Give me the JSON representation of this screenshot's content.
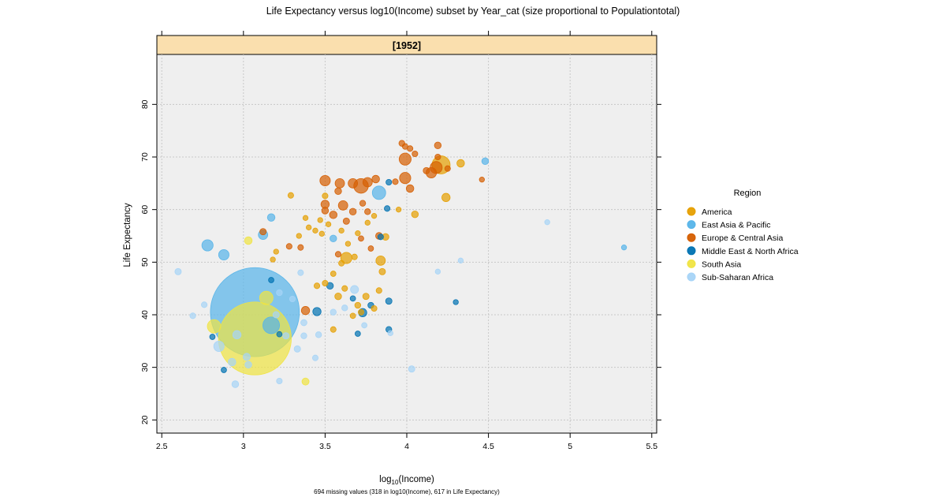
{
  "chart_data": {
    "type": "scatter",
    "title": "Life Expectancy versus log10(Income) subset by Year_cat (size proportional to Populationtotal)",
    "strip_label": "[1952]",
    "xlabel": {
      "main": "log",
      "sub": "10",
      "rest": "(Income)"
    },
    "ylabel": "Life Expectancy",
    "footnote": "694 missing values (318 in log10(Income), 617 in Life Expectancy)",
    "xlim": [
      2.47,
      5.53
    ],
    "ylim": [
      17.5,
      89.5
    ],
    "x_ticks": [
      2.5,
      3,
      3.5,
      4,
      4.5,
      5,
      5.5
    ],
    "x_tick_labels": [
      "2.5",
      "3",
      "3.5",
      "4",
      "4.5",
      "5",
      "5.5"
    ],
    "y_ticks": [
      20,
      30,
      40,
      50,
      60,
      70,
      80
    ],
    "y_tick_labels": [
      "20",
      "30",
      "40",
      "50",
      "60",
      "70",
      "80"
    ],
    "grid": true,
    "legend": {
      "title": "Region",
      "placement": "right",
      "entries": [
        {
          "key": "america",
          "label": "America",
          "color": "#E69F00"
        },
        {
          "key": "eap",
          "label": "East Asia & Pacific",
          "color": "#56B4E9"
        },
        {
          "key": "eca",
          "label": "Europe & Central Asia",
          "color": "#D55E00"
        },
        {
          "key": "mena",
          "label": "Middle East & North Africa",
          "color": "#0072B2"
        },
        {
          "key": "sa",
          "label": "South Asia",
          "color": "#F0E442"
        },
        {
          "key": "ssa",
          "label": "Sub-Saharan Africa",
          "color": "#A6D4F7"
        }
      ]
    },
    "size_variable": "Populationtotal",
    "size_scale_note": "bubble radius proportional to sqrt(population); values are relative population",
    "points": [
      {
        "x": 3.07,
        "y": 40.5,
        "pop": 560,
        "region": "eap"
      },
      {
        "x": 3.07,
        "y": 35.5,
        "pop": 370,
        "region": "sa"
      },
      {
        "x": 3.14,
        "y": 43.2,
        "pop": 8,
        "region": "sa"
      },
      {
        "x": 3.17,
        "y": 38.0,
        "pop": 14,
        "region": "eap"
      },
      {
        "x": 2.82,
        "y": 37.8,
        "pop": 8,
        "region": "sa"
      },
      {
        "x": 2.78,
        "y": 53.2,
        "pop": 5,
        "region": "eap"
      },
      {
        "x": 2.88,
        "y": 51.4,
        "pop": 4,
        "region": "eap"
      },
      {
        "x": 3.12,
        "y": 55.2,
        "pop": 3,
        "region": "eap"
      },
      {
        "x": 3.17,
        "y": 58.5,
        "pop": 1.5,
        "region": "eap"
      },
      {
        "x": 3.03,
        "y": 54.1,
        "pop": 1.5,
        "region": "sa"
      },
      {
        "x": 2.85,
        "y": 34.0,
        "pop": 4,
        "region": "ssa"
      },
      {
        "x": 2.96,
        "y": 36.2,
        "pop": 2,
        "region": "ssa"
      },
      {
        "x": 2.93,
        "y": 31.0,
        "pop": 1.5,
        "region": "ssa"
      },
      {
        "x": 2.95,
        "y": 26.8,
        "pop": 1,
        "region": "ssa"
      },
      {
        "x": 3.03,
        "y": 30.5,
        "pop": 1,
        "region": "ssa"
      },
      {
        "x": 2.6,
        "y": 48.2,
        "pop": 0.8,
        "region": "ssa"
      },
      {
        "x": 2.69,
        "y": 39.8,
        "pop": 0.5,
        "region": "ssa"
      },
      {
        "x": 2.88,
        "y": 29.5,
        "pop": 0.4,
        "region": "mena"
      },
      {
        "x": 2.81,
        "y": 35.8,
        "pop": 0.4,
        "region": "mena"
      },
      {
        "x": 3.2,
        "y": 40.0,
        "pop": 0.8,
        "region": "ssa"
      },
      {
        "x": 3.22,
        "y": 44.2,
        "pop": 0.6,
        "region": "ssa"
      },
      {
        "x": 3.26,
        "y": 36.0,
        "pop": 0.8,
        "region": "ssa"
      },
      {
        "x": 3.33,
        "y": 33.5,
        "pop": 0.8,
        "region": "ssa"
      },
      {
        "x": 3.37,
        "y": 38.5,
        "pop": 0.7,
        "region": "ssa"
      },
      {
        "x": 3.37,
        "y": 36.0,
        "pop": 0.6,
        "region": "ssa"
      },
      {
        "x": 3.44,
        "y": 31.8,
        "pop": 0.5,
        "region": "ssa"
      },
      {
        "x": 3.46,
        "y": 36.2,
        "pop": 0.6,
        "region": "ssa"
      },
      {
        "x": 3.3,
        "y": 43.0,
        "pop": 0.5,
        "region": "ssa"
      },
      {
        "x": 3.35,
        "y": 48.0,
        "pop": 0.5,
        "region": "ssa"
      },
      {
        "x": 3.22,
        "y": 27.4,
        "pop": 0.5,
        "region": "ssa"
      },
      {
        "x": 3.38,
        "y": 27.3,
        "pop": 1.2,
        "region": "sa"
      },
      {
        "x": 3.55,
        "y": 40.5,
        "pop": 0.6,
        "region": "ssa"
      },
      {
        "x": 3.62,
        "y": 41.3,
        "pop": 0.6,
        "region": "ssa"
      },
      {
        "x": 3.68,
        "y": 44.8,
        "pop": 1.8,
        "region": "ssa"
      },
      {
        "x": 3.74,
        "y": 38.0,
        "pop": 0.4,
        "region": "ssa"
      },
      {
        "x": 3.9,
        "y": 36.5,
        "pop": 0.3,
        "region": "ssa"
      },
      {
        "x": 4.03,
        "y": 29.7,
        "pop": 0.8,
        "region": "ssa"
      },
      {
        "x": 4.19,
        "y": 48.2,
        "pop": 0.3,
        "region": "ssa"
      },
      {
        "x": 4.33,
        "y": 50.3,
        "pop": 0.3,
        "region": "ssa"
      },
      {
        "x": 4.86,
        "y": 57.6,
        "pop": 0.3,
        "region": "ssa"
      },
      {
        "x": 5.33,
        "y": 52.8,
        "pop": 0.3,
        "region": "eap"
      },
      {
        "x": 4.3,
        "y": 42.4,
        "pop": 0.3,
        "region": "mena"
      },
      {
        "x": 3.5,
        "y": 65.5,
        "pop": 4,
        "region": "eca"
      },
      {
        "x": 3.59,
        "y": 65.0,
        "pop": 3,
        "region": "eca"
      },
      {
        "x": 3.67,
        "y": 65.0,
        "pop": 3,
        "region": "eca"
      },
      {
        "x": 3.72,
        "y": 64.5,
        "pop": 10,
        "region": "eca"
      },
      {
        "x": 3.76,
        "y": 65.2,
        "pop": 3,
        "region": "eca"
      },
      {
        "x": 3.81,
        "y": 65.8,
        "pop": 1.5,
        "region": "eca"
      },
      {
        "x": 3.99,
        "y": 69.6,
        "pop": 6,
        "region": "eca"
      },
      {
        "x": 3.99,
        "y": 66.0,
        "pop": 5,
        "region": "eca"
      },
      {
        "x": 4.02,
        "y": 64.0,
        "pop": 1.5,
        "region": "eca"
      },
      {
        "x": 4.18,
        "y": 68.0,
        "pop": 6,
        "region": "eca"
      },
      {
        "x": 4.15,
        "y": 67.0,
        "pop": 4,
        "region": "eca"
      },
      {
        "x": 4.21,
        "y": 68.5,
        "pop": 17,
        "region": "america"
      },
      {
        "x": 4.33,
        "y": 68.8,
        "pop": 1.5,
        "region": "america"
      },
      {
        "x": 4.48,
        "y": 69.2,
        "pop": 1,
        "region": "eap"
      },
      {
        "x": 4.19,
        "y": 72.2,
        "pop": 1,
        "region": "eca"
      },
      {
        "x": 4.19,
        "y": 70.0,
        "pop": 0.5,
        "region": "eca"
      },
      {
        "x": 3.97,
        "y": 72.6,
        "pop": 0.6,
        "region": "eca"
      },
      {
        "x": 3.99,
        "y": 72.0,
        "pop": 0.5,
        "region": "eca"
      },
      {
        "x": 4.02,
        "y": 71.6,
        "pop": 0.5,
        "region": "eca"
      },
      {
        "x": 4.05,
        "y": 70.6,
        "pop": 0.5,
        "region": "eca"
      },
      {
        "x": 4.12,
        "y": 67.4,
        "pop": 0.8,
        "region": "eca"
      },
      {
        "x": 4.25,
        "y": 67.8,
        "pop": 0.5,
        "region": "eca"
      },
      {
        "x": 4.46,
        "y": 65.7,
        "pop": 0.3,
        "region": "eca"
      },
      {
        "x": 4.24,
        "y": 62.3,
        "pop": 2,
        "region": "america"
      },
      {
        "x": 4.05,
        "y": 59.1,
        "pop": 1,
        "region": "america"
      },
      {
        "x": 3.93,
        "y": 65.3,
        "pop": 0.5,
        "region": "eca"
      },
      {
        "x": 3.89,
        "y": 65.2,
        "pop": 0.5,
        "region": "mena"
      },
      {
        "x": 3.83,
        "y": 63.2,
        "pop": 8,
        "region": "eap"
      },
      {
        "x": 3.88,
        "y": 60.2,
        "pop": 0.5,
        "region": "mena"
      },
      {
        "x": 3.5,
        "y": 61.0,
        "pop": 2,
        "region": "eca"
      },
      {
        "x": 3.61,
        "y": 60.8,
        "pop": 3,
        "region": "eca"
      },
      {
        "x": 3.55,
        "y": 59.0,
        "pop": 1.5,
        "region": "eca"
      },
      {
        "x": 3.5,
        "y": 59.8,
        "pop": 1,
        "region": "eca"
      },
      {
        "x": 3.58,
        "y": 63.5,
        "pop": 1,
        "region": "eca"
      },
      {
        "x": 3.5,
        "y": 62.6,
        "pop": 0.5,
        "region": "america"
      },
      {
        "x": 3.63,
        "y": 57.8,
        "pop": 0.8,
        "region": "eca"
      },
      {
        "x": 3.67,
        "y": 59.6,
        "pop": 1,
        "region": "eca"
      },
      {
        "x": 3.73,
        "y": 61.2,
        "pop": 0.6,
        "region": "eca"
      },
      {
        "x": 3.76,
        "y": 59.6,
        "pop": 0.6,
        "region": "eca"
      },
      {
        "x": 3.83,
        "y": 55.0,
        "pop": 1,
        "region": "eca"
      },
      {
        "x": 3.87,
        "y": 54.8,
        "pop": 1,
        "region": "america"
      },
      {
        "x": 3.84,
        "y": 54.8,
        "pop": 0.5,
        "region": "mena"
      },
      {
        "x": 3.78,
        "y": 52.6,
        "pop": 0.4,
        "region": "eca"
      },
      {
        "x": 3.72,
        "y": 54.5,
        "pop": 0.4,
        "region": "eca"
      },
      {
        "x": 3.55,
        "y": 54.5,
        "pop": 1,
        "region": "eap"
      },
      {
        "x": 3.29,
        "y": 62.7,
        "pop": 0.5,
        "region": "america"
      },
      {
        "x": 3.28,
        "y": 53.0,
        "pop": 0.5,
        "region": "eca"
      },
      {
        "x": 3.35,
        "y": 52.8,
        "pop": 0.5,
        "region": "eca"
      },
      {
        "x": 3.34,
        "y": 55.0,
        "pop": 0.3,
        "region": "america"
      },
      {
        "x": 3.2,
        "y": 52.0,
        "pop": 0.3,
        "region": "america"
      },
      {
        "x": 3.18,
        "y": 50.5,
        "pop": 0.3,
        "region": "america"
      },
      {
        "x": 3.12,
        "y": 55.8,
        "pop": 0.8,
        "region": "eca"
      },
      {
        "x": 3.38,
        "y": 58.4,
        "pop": 0.3,
        "region": "america"
      },
      {
        "x": 3.4,
        "y": 56.6,
        "pop": 0.3,
        "region": "america"
      },
      {
        "x": 3.44,
        "y": 56.0,
        "pop": 0.3,
        "region": "america"
      },
      {
        "x": 3.48,
        "y": 55.4,
        "pop": 0.3,
        "region": "america"
      },
      {
        "x": 3.47,
        "y": 58.0,
        "pop": 0.3,
        "region": "america"
      },
      {
        "x": 3.52,
        "y": 57.2,
        "pop": 0.3,
        "region": "america"
      },
      {
        "x": 3.6,
        "y": 56.0,
        "pop": 0.3,
        "region": "america"
      },
      {
        "x": 3.64,
        "y": 53.5,
        "pop": 0.3,
        "region": "america"
      },
      {
        "x": 3.7,
        "y": 55.5,
        "pop": 0.3,
        "region": "america"
      },
      {
        "x": 3.76,
        "y": 57.5,
        "pop": 0.3,
        "region": "america"
      },
      {
        "x": 3.8,
        "y": 58.8,
        "pop": 0.3,
        "region": "america"
      },
      {
        "x": 3.95,
        "y": 60.0,
        "pop": 0.3,
        "region": "america"
      },
      {
        "x": 3.58,
        "y": 51.5,
        "pop": 0.5,
        "region": "eca"
      },
      {
        "x": 3.63,
        "y": 50.8,
        "pop": 5,
        "region": "america"
      },
      {
        "x": 3.84,
        "y": 50.3,
        "pop": 3,
        "region": "america"
      },
      {
        "x": 3.85,
        "y": 48.2,
        "pop": 0.8,
        "region": "america"
      },
      {
        "x": 3.68,
        "y": 51.0,
        "pop": 0.5,
        "region": "america"
      },
      {
        "x": 3.6,
        "y": 49.8,
        "pop": 0.5,
        "region": "america"
      },
      {
        "x": 3.55,
        "y": 47.8,
        "pop": 0.4,
        "region": "america"
      },
      {
        "x": 3.5,
        "y": 46.0,
        "pop": 0.5,
        "region": "america"
      },
      {
        "x": 3.45,
        "y": 45.5,
        "pop": 0.5,
        "region": "america"
      },
      {
        "x": 3.58,
        "y": 43.5,
        "pop": 1,
        "region": "america"
      },
      {
        "x": 3.62,
        "y": 45.0,
        "pop": 0.5,
        "region": "america"
      },
      {
        "x": 3.75,
        "y": 43.5,
        "pop": 0.8,
        "region": "america"
      },
      {
        "x": 3.7,
        "y": 41.8,
        "pop": 0.6,
        "region": "america"
      },
      {
        "x": 3.72,
        "y": 40.5,
        "pop": 0.5,
        "region": "america"
      },
      {
        "x": 3.8,
        "y": 41.2,
        "pop": 0.5,
        "region": "america"
      },
      {
        "x": 3.83,
        "y": 44.6,
        "pop": 0.5,
        "region": "america"
      },
      {
        "x": 3.67,
        "y": 39.8,
        "pop": 0.4,
        "region": "america"
      },
      {
        "x": 3.55,
        "y": 37.2,
        "pop": 0.5,
        "region": "america"
      },
      {
        "x": 3.38,
        "y": 40.8,
        "pop": 2,
        "region": "eca"
      },
      {
        "x": 3.45,
        "y": 40.6,
        "pop": 2,
        "region": "mena"
      },
      {
        "x": 3.53,
        "y": 45.5,
        "pop": 1,
        "region": "mena"
      },
      {
        "x": 3.67,
        "y": 43.1,
        "pop": 0.4,
        "region": "mena"
      },
      {
        "x": 3.73,
        "y": 40.4,
        "pop": 2,
        "region": "mena"
      },
      {
        "x": 3.78,
        "y": 41.8,
        "pop": 0.6,
        "region": "mena"
      },
      {
        "x": 3.89,
        "y": 42.6,
        "pop": 0.8,
        "region": "mena"
      },
      {
        "x": 3.89,
        "y": 37.2,
        "pop": 0.6,
        "region": "mena"
      },
      {
        "x": 3.7,
        "y": 36.4,
        "pop": 0.4,
        "region": "mena"
      },
      {
        "x": 3.22,
        "y": 36.3,
        "pop": 0.4,
        "region": "mena"
      },
      {
        "x": 3.17,
        "y": 46.6,
        "pop": 0.4,
        "region": "mena"
      },
      {
        "x": 2.76,
        "y": 41.9,
        "pop": 0.5,
        "region": "ssa"
      },
      {
        "x": 3.02,
        "y": 32.0,
        "pop": 1.2,
        "region": "ssa"
      }
    ]
  }
}
